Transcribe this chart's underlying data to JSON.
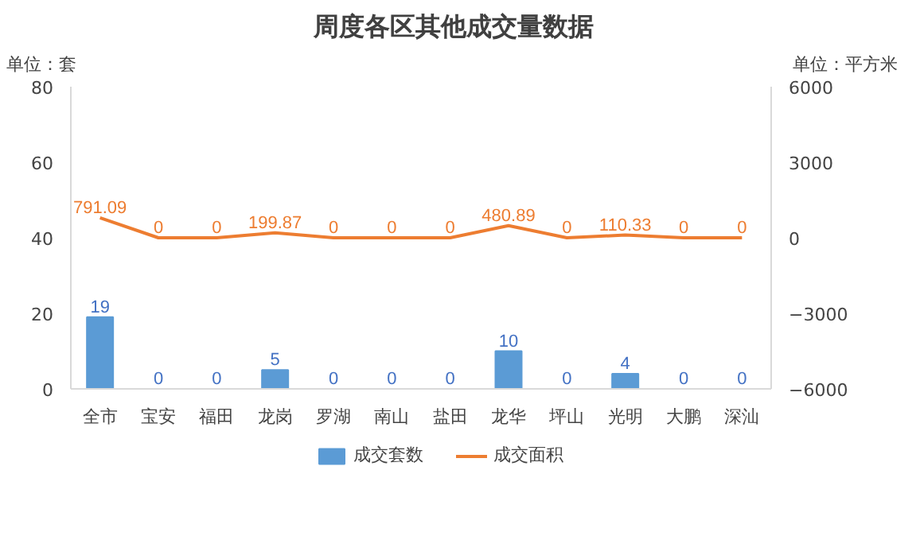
{
  "chart_data": {
    "type": "bar",
    "title": "周度各区其他成交量数据",
    "ylabel": "单位：套",
    "y2label": "单位：平方米",
    "categories": [
      "全市",
      "宝安",
      "福田",
      "龙岗",
      "罗湖",
      "南山",
      "盐田",
      "龙华",
      "坪山",
      "光明",
      "大鹏",
      "深汕"
    ],
    "series": [
      {
        "name": "成交套数",
        "color": "#5b9bd5",
        "values": [
          19,
          0,
          0,
          5,
          0,
          0,
          0,
          10,
          0,
          4,
          0,
          0
        ]
      },
      {
        "name": "成交面积",
        "type": "line",
        "axis": "y2",
        "color": "#ed7d31",
        "values": [
          791.09,
          0,
          0,
          199.87,
          0,
          0,
          0,
          480.89,
          0,
          110.33,
          0,
          0
        ]
      }
    ],
    "ylim": [
      0,
      80
    ],
    "yticks": [
      0,
      20,
      40,
      60,
      80
    ],
    "y2lim": [
      -6000,
      6000
    ],
    "y2ticks": [
      -6000,
      -3000,
      0,
      3000,
      6000
    ],
    "data_labels": true,
    "legend": "bottom",
    "grid": false
  }
}
